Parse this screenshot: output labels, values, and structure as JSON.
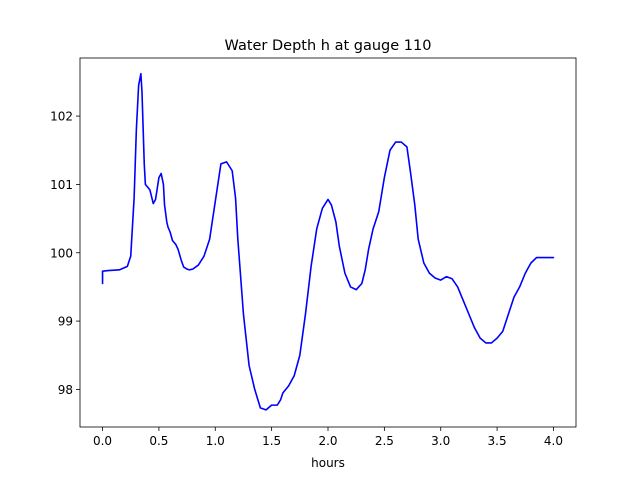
{
  "chart_data": {
    "type": "line",
    "title": "Water Depth h at gauge 110",
    "xlabel": "hours",
    "ylabel": "",
    "xlim": [
      -0.2,
      4.2
    ],
    "ylim": [
      97.45,
      102.85
    ],
    "grid": false,
    "x_ticks": [
      0.0,
      0.5,
      1.0,
      1.5,
      2.0,
      2.5,
      3.0,
      3.5,
      4.0
    ],
    "x_tick_labels": [
      "0.0",
      "0.5",
      "1.0",
      "1.5",
      "2.0",
      "2.5",
      "3.0",
      "3.5",
      "4.0"
    ],
    "y_ticks": [
      98,
      99,
      100,
      101,
      102
    ],
    "y_tick_labels": [
      "98",
      "99",
      "100",
      "101",
      "102"
    ],
    "series": [
      {
        "color": "#0000ff",
        "x": [
          0.0,
          0.0,
          0.05,
          0.15,
          0.22,
          0.25,
          0.28,
          0.3,
          0.32,
          0.34,
          0.35,
          0.37,
          0.38,
          0.4,
          0.42,
          0.45,
          0.47,
          0.5,
          0.52,
          0.54,
          0.55,
          0.57,
          0.58,
          0.6,
          0.62,
          0.65,
          0.67,
          0.7,
          0.72,
          0.75,
          0.77,
          0.8,
          0.85,
          0.9,
          0.95,
          1.0,
          1.05,
          1.1,
          1.15,
          1.18,
          1.2,
          1.25,
          1.3,
          1.35,
          1.4,
          1.45,
          1.5,
          1.55,
          1.58,
          1.6,
          1.65,
          1.7,
          1.75,
          1.8,
          1.85,
          1.9,
          1.95,
          2.0,
          2.03,
          2.07,
          2.1,
          2.15,
          2.2,
          2.25,
          2.3,
          2.33,
          2.36,
          2.4,
          2.45,
          2.5,
          2.55,
          2.6,
          2.65,
          2.7,
          2.73,
          2.77,
          2.8,
          2.85,
          2.9,
          2.95,
          3.0,
          3.05,
          3.1,
          3.15,
          3.2,
          3.25,
          3.3,
          3.35,
          3.4,
          3.45,
          3.5,
          3.55,
          3.58,
          3.62,
          3.65,
          3.7,
          3.75,
          3.8,
          3.85,
          3.9,
          3.95,
          4.0
        ],
        "y": [
          99.55,
          99.73,
          99.74,
          99.75,
          99.8,
          99.95,
          100.8,
          101.8,
          102.45,
          102.62,
          102.35,
          101.3,
          101.0,
          100.96,
          100.92,
          100.72,
          100.78,
          101.1,
          101.16,
          101.0,
          100.7,
          100.45,
          100.38,
          100.3,
          100.18,
          100.12,
          100.05,
          99.88,
          99.79,
          99.76,
          99.75,
          99.76,
          99.82,
          99.95,
          100.2,
          100.75,
          101.3,
          101.33,
          101.2,
          100.8,
          100.2,
          99.1,
          98.35,
          98.0,
          97.73,
          97.7,
          97.77,
          97.77,
          97.85,
          97.95,
          98.05,
          98.2,
          98.5,
          99.1,
          99.8,
          100.35,
          100.65,
          100.78,
          100.7,
          100.45,
          100.1,
          99.7,
          99.5,
          99.46,
          99.55,
          99.75,
          100.05,
          100.35,
          100.6,
          101.1,
          101.5,
          101.62,
          101.62,
          101.55,
          101.2,
          100.7,
          100.2,
          99.85,
          99.7,
          99.63,
          99.6,
          99.65,
          99.62,
          99.5,
          99.3,
          99.1,
          98.9,
          98.75,
          98.68,
          98.68,
          98.75,
          98.85,
          99.0,
          99.2,
          99.35,
          99.5,
          99.7,
          99.85,
          99.93,
          99.93,
          99.93,
          99.93
        ]
      }
    ]
  }
}
